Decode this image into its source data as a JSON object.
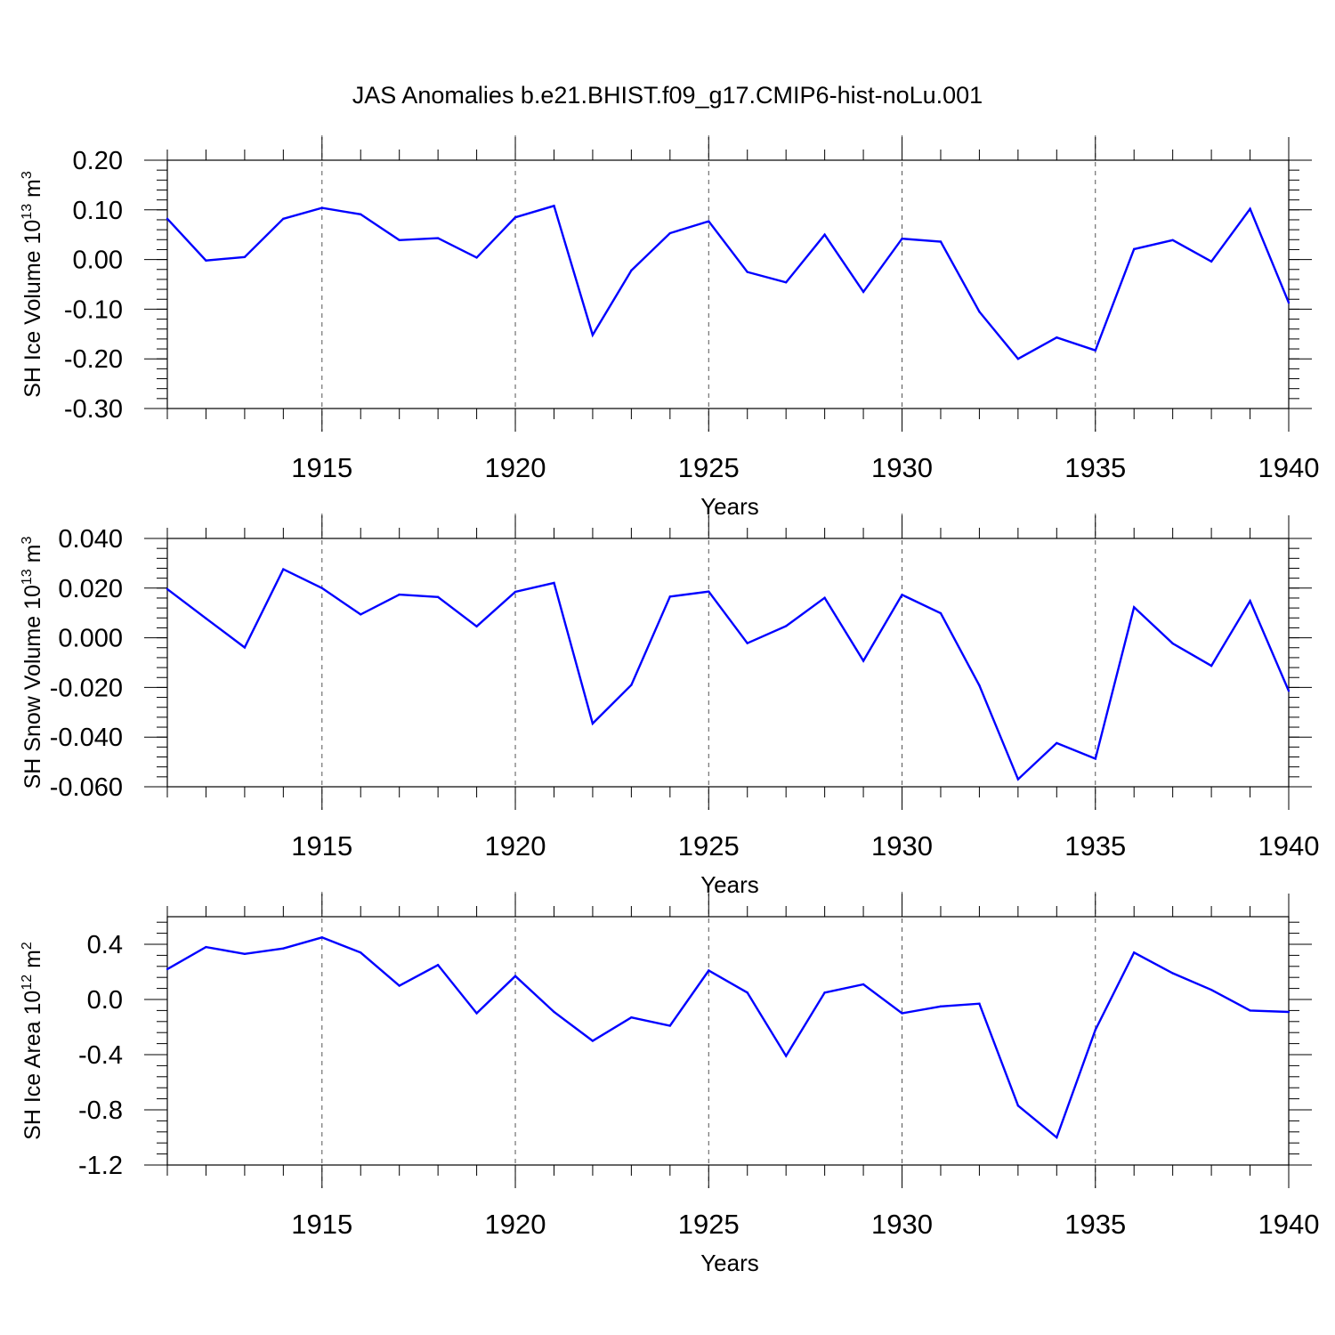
{
  "title": "JAS Anomalies b.e21.BHIST.f09_g17.CMIP6-hist-noLu.001",
  "colors": {
    "line": "#0000ff",
    "axis": "#000000",
    "grid": "#555555"
  },
  "chart_data": [
    {
      "type": "line",
      "ylabel_base": "SH Ice Volume 10",
      "ylabel_exp": "13",
      "ylabel_unit": " m",
      "ylabel_unit_exp": "3",
      "xlabel": "Years",
      "xlim": [
        1911,
        1940
      ],
      "ylim": [
        -0.3,
        0.2
      ],
      "yticks": [
        0.2,
        0.1,
        0.0,
        -0.1,
        -0.2,
        -0.3
      ],
      "ytick_labels": [
        "0.20",
        "0.10",
        "0.00",
        "-0.10",
        "-0.20",
        "-0.30"
      ],
      "yminor_step": 0.02,
      "xticks": [
        1915,
        1920,
        1925,
        1930,
        1935,
        1940
      ],
      "xtick_labels": [
        "1915",
        "1920",
        "1925",
        "1930",
        "1935",
        "1940"
      ],
      "grid": "vertical dashed at major x ticks",
      "x": [
        1911,
        1912,
        1913,
        1914,
        1915,
        1916,
        1917,
        1918,
        1919,
        1920,
        1921,
        1922,
        1923,
        1924,
        1925,
        1926,
        1927,
        1928,
        1929,
        1930,
        1931,
        1932,
        1933,
        1934,
        1935,
        1936,
        1937,
        1938,
        1939,
        1940
      ],
      "y": [
        0.082,
        -0.002,
        0.005,
        0.082,
        0.104,
        0.091,
        0.039,
        0.043,
        0.004,
        0.085,
        0.108,
        -0.152,
        -0.022,
        0.053,
        0.077,
        -0.025,
        -0.046,
        0.05,
        -0.065,
        0.042,
        0.036,
        -0.105,
        -0.2,
        -0.157,
        -0.183,
        0.021,
        0.039,
        -0.004,
        0.102,
        -0.087
      ]
    },
    {
      "type": "line",
      "ylabel_base": "SH Snow Volume 10",
      "ylabel_exp": "13",
      "ylabel_unit": " m",
      "ylabel_unit_exp": "3",
      "xlabel": "Years",
      "xlim": [
        1911,
        1940
      ],
      "ylim": [
        -0.06,
        0.04
      ],
      "yticks": [
        0.04,
        0.02,
        0.0,
        -0.02,
        -0.04,
        -0.06
      ],
      "ytick_labels": [
        "0.040",
        "0.020",
        "0.000",
        "-0.020",
        "-0.040",
        "-0.060"
      ],
      "yminor_step": 0.004,
      "xticks": [
        1915,
        1920,
        1925,
        1930,
        1935,
        1940
      ],
      "xtick_labels": [
        "1915",
        "1920",
        "1925",
        "1930",
        "1935",
        "1940"
      ],
      "grid": "vertical dashed at major x ticks",
      "x": [
        1911,
        1912,
        1913,
        1914,
        1915,
        1916,
        1917,
        1918,
        1919,
        1920,
        1921,
        1922,
        1923,
        1924,
        1925,
        1926,
        1927,
        1928,
        1929,
        1930,
        1931,
        1932,
        1933,
        1934,
        1935,
        1936,
        1937,
        1938,
        1939,
        1940
      ],
      "y": [
        0.0196,
        0.0078,
        -0.0039,
        0.0276,
        0.02,
        0.0094,
        0.0174,
        0.0164,
        0.0046,
        0.0185,
        0.0221,
        -0.0345,
        -0.019,
        0.0166,
        0.0186,
        -0.0022,
        0.0047,
        0.0161,
        -0.0093,
        0.0173,
        0.0099,
        -0.0192,
        -0.057,
        -0.0424,
        -0.0487,
        0.0123,
        -0.0023,
        -0.0113,
        0.0148,
        -0.0214
      ]
    },
    {
      "type": "line",
      "ylabel_base": "SH Ice Area 10",
      "ylabel_exp": "12",
      "ylabel_unit": " m",
      "ylabel_unit_exp": "2",
      "xlabel": "Years",
      "xlim": [
        1911,
        1940
      ],
      "ylim": [
        -1.2,
        0.6
      ],
      "yticks": [
        0.4,
        0.0,
        -0.4,
        -0.8,
        -1.2
      ],
      "ytick_labels": [
        "0.4",
        "0.0",
        "-0.4",
        "-0.8",
        "-1.2"
      ],
      "yminor_step": 0.08,
      "xticks": [
        1915,
        1920,
        1925,
        1930,
        1935,
        1940
      ],
      "xtick_labels": [
        "1915",
        "1920",
        "1925",
        "1930",
        "1935",
        "1940"
      ],
      "grid": "vertical dashed at major x ticks",
      "x": [
        1911,
        1912,
        1913,
        1914,
        1915,
        1916,
        1917,
        1918,
        1919,
        1920,
        1921,
        1922,
        1923,
        1924,
        1925,
        1926,
        1927,
        1928,
        1929,
        1930,
        1931,
        1932,
        1933,
        1934,
        1935,
        1936,
        1937,
        1938,
        1939,
        1940
      ],
      "y": [
        0.22,
        0.38,
        0.33,
        0.37,
        0.45,
        0.34,
        0.1,
        0.25,
        -0.1,
        0.17,
        -0.09,
        -0.3,
        -0.13,
        -0.19,
        0.21,
        0.05,
        -0.41,
        0.05,
        0.11,
        -0.1,
        -0.05,
        -0.03,
        -0.77,
        -1.0,
        -0.22,
        0.34,
        0.19,
        0.07,
        -0.08,
        -0.09
      ]
    }
  ]
}
